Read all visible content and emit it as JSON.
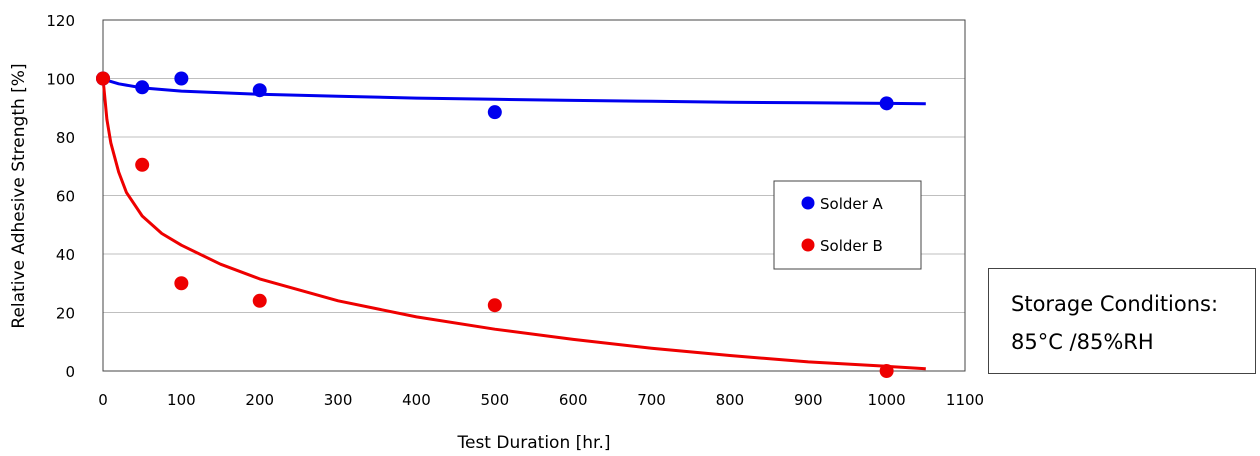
{
  "chart_data": {
    "type": "scatter",
    "title": "",
    "xlabel": "Test Duration [hr.]",
    "ylabel": "Relative Adhesive Strength [%]",
    "xlim": [
      0,
      1100
    ],
    "ylim": [
      0,
      120
    ],
    "xticks": [
      0,
      100,
      200,
      300,
      400,
      500,
      600,
      700,
      800,
      900,
      1000,
      1100
    ],
    "yticks": [
      0,
      20,
      40,
      60,
      80,
      100,
      120
    ],
    "grid": "horizontal",
    "legend_position": "right-center",
    "series": [
      {
        "name": "Solder A",
        "color": "#0000ee",
        "points": [
          [
            0,
            100
          ],
          [
            50,
            97
          ],
          [
            100,
            100
          ],
          [
            200,
            96
          ],
          [
            500,
            88.5
          ],
          [
            1000,
            91.5
          ]
        ],
        "trendline": [
          [
            0,
            100
          ],
          [
            5,
            99.4
          ],
          [
            20,
            98.2
          ],
          [
            50,
            96.8
          ],
          [
            100,
            95.7
          ],
          [
            200,
            94.6
          ],
          [
            300,
            93.9
          ],
          [
            400,
            93.3
          ],
          [
            500,
            92.9
          ],
          [
            600,
            92.5
          ],
          [
            700,
            92.2
          ],
          [
            800,
            91.9
          ],
          [
            900,
            91.7
          ],
          [
            1000,
            91.5
          ],
          [
            1050,
            91.4
          ]
        ]
      },
      {
        "name": "Solder B",
        "color": "#ee0000",
        "points": [
          [
            0,
            100
          ],
          [
            50,
            70.5
          ],
          [
            100,
            30
          ],
          [
            200,
            24
          ],
          [
            500,
            22.5
          ],
          [
            1000,
            0
          ]
        ],
        "trendline": [
          [
            0,
            100
          ],
          [
            5,
            86
          ],
          [
            10,
            78
          ],
          [
            20,
            68
          ],
          [
            30,
            61
          ],
          [
            50,
            53
          ],
          [
            75,
            47
          ],
          [
            100,
            43
          ],
          [
            150,
            36.5
          ],
          [
            200,
            31.5
          ],
          [
            300,
            24
          ],
          [
            400,
            18.5
          ],
          [
            500,
            14.3
          ],
          [
            600,
            10.8
          ],
          [
            700,
            7.8
          ],
          [
            800,
            5.3
          ],
          [
            900,
            3.1
          ],
          [
            1000,
            1.6
          ],
          [
            1050,
            0.8
          ]
        ]
      }
    ]
  },
  "note": {
    "line1": "Storage Conditions:",
    "line2": "85°C /85%RH"
  }
}
